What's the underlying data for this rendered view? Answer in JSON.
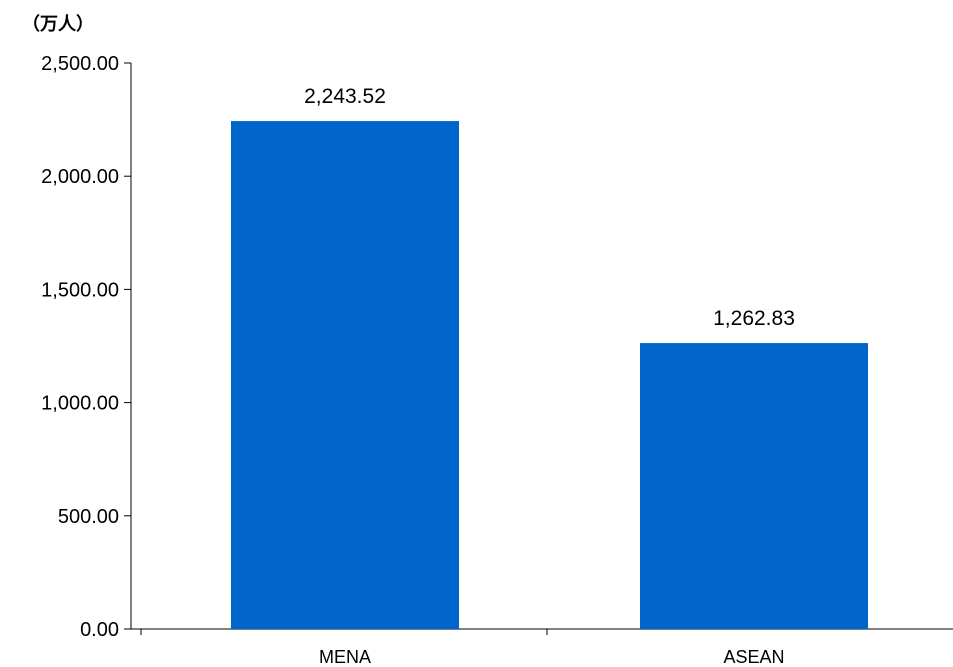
{
  "chart_data": {
    "type": "bar",
    "unit_label": "（万人）",
    "categories": [
      "MENA",
      "ASEAN"
    ],
    "values": [
      2243.52,
      1262.83
    ],
    "value_labels": [
      "2,243.52",
      "1,262.83"
    ],
    "yticks": [
      0,
      500,
      1000,
      1500,
      2000,
      2500
    ],
    "ytick_labels": [
      "0.00",
      "500.00",
      "1,000.00",
      "1,500.00",
      "2,000.00",
      "2,500.00"
    ],
    "ylim": [
      0,
      2500
    ],
    "grid": false,
    "legend": "none",
    "bar_color": "#0066CC"
  }
}
